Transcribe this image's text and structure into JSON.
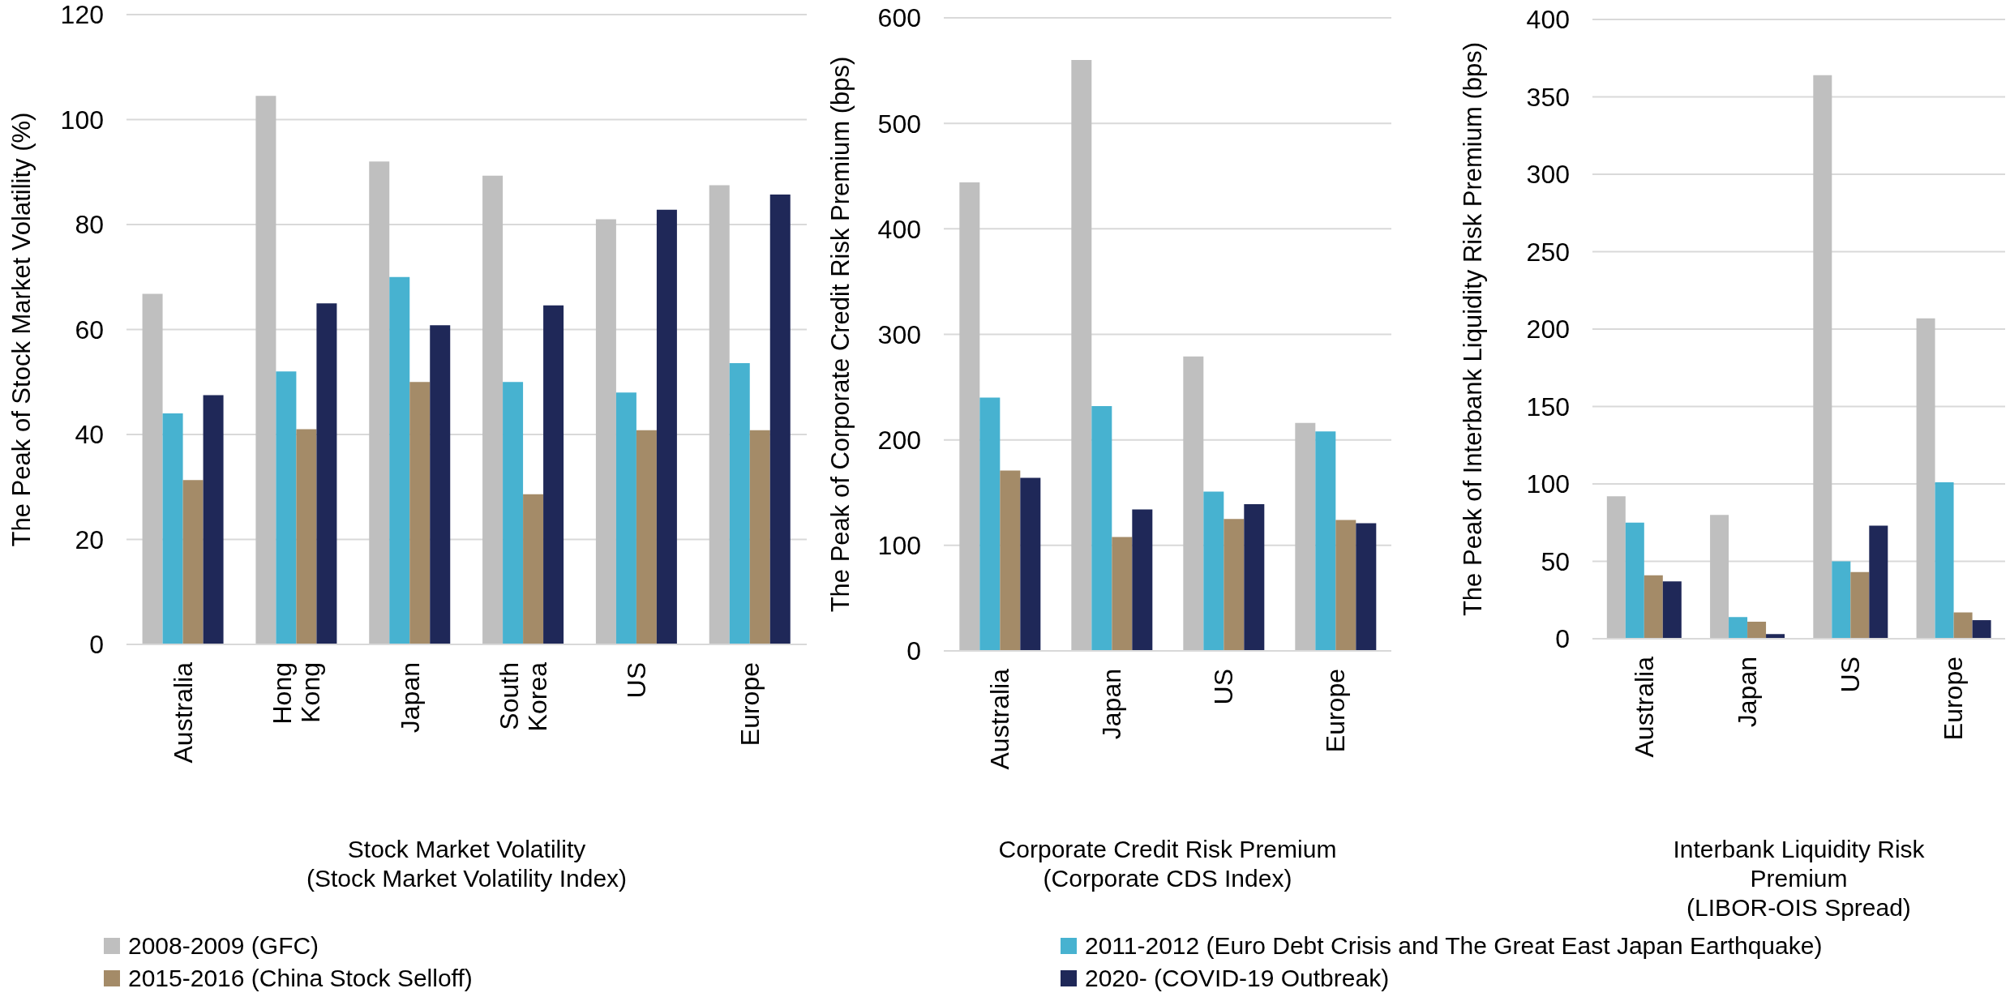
{
  "chart_data": [
    {
      "type": "bar",
      "xlabel": "Stock Market Volatility\n(Stock Market Volatility Index)",
      "ylabel": "The Peak of Stock Market Volatility (%)",
      "categories": [
        "Australia",
        "Hong Kong",
        "Japan",
        "South Korea",
        "US",
        "Europe"
      ],
      "ylim": [
        0,
        120
      ],
      "yticks": [
        0,
        20,
        40,
        60,
        80,
        100,
        120
      ],
      "grid": "y",
      "legend": "bottom",
      "series": [
        {
          "name": "2008-2009 (GFC)",
          "color": "#bfbfbf",
          "values": [
            66.8,
            104.5,
            92,
            89.3,
            81,
            87.5
          ]
        },
        {
          "name": "2011-2012 (Euro Debt Crisis and The Great East Japan Earthquake)",
          "color": "#47b2d0",
          "values": [
            44,
            52,
            70,
            50,
            48,
            53.6
          ]
        },
        {
          "name": "2015-2016 (China Stock Selloff)",
          "color": "#a48b68",
          "values": [
            31.3,
            41,
            50,
            28.6,
            40.8,
            40.8
          ]
        },
        {
          "name": "2020- (COVID-19 Outbreak)",
          "color": "#1f2858",
          "values": [
            47.5,
            65,
            60.8,
            64.6,
            82.8,
            85.7
          ]
        }
      ]
    },
    {
      "type": "bar",
      "xlabel": "Corporate Credit Risk Premium\n(Corporate CDS Index)",
      "ylabel": "The Peak of Corporate Credit Risk Premium (bps)",
      "categories": [
        "Australia",
        "Japan",
        "US",
        "Europe"
      ],
      "ylim": [
        0,
        600
      ],
      "yticks": [
        0,
        100,
        200,
        300,
        400,
        500,
        600
      ],
      "grid": "y",
      "series": [
        {
          "color": "#bfbfbf",
          "values": [
            444,
            560,
            279,
            216
          ]
        },
        {
          "color": "#47b2d0",
          "values": [
            240,
            232,
            151,
            208
          ]
        },
        {
          "color": "#a48b68",
          "values": [
            171,
            108,
            125,
            124
          ]
        },
        {
          "color": "#1f2858",
          "values": [
            164,
            134,
            139,
            121
          ]
        }
      ]
    },
    {
      "type": "bar",
      "xlabel": "Interbank Liquidity Risk\nPremium\n(LIBOR-OIS Spread)",
      "ylabel": "The Peak of Interbank Liquidity Risk Premium (bps)",
      "categories": [
        "Australia",
        "Japan",
        "US",
        "Europe"
      ],
      "ylim": [
        0,
        400
      ],
      "yticks": [
        0,
        50,
        100,
        150,
        200,
        250,
        300,
        350,
        400
      ],
      "grid": "y",
      "series": [
        {
          "color": "#bfbfbf",
          "values": [
            92,
            80,
            364,
            207
          ]
        },
        {
          "color": "#47b2d0",
          "values": [
            75,
            14,
            50,
            101
          ]
        },
        {
          "color": "#a48b68",
          "values": [
            41,
            11,
            43,
            17
          ]
        },
        {
          "color": "#1f2858",
          "values": [
            37,
            3,
            73,
            12
          ]
        }
      ]
    }
  ]
}
